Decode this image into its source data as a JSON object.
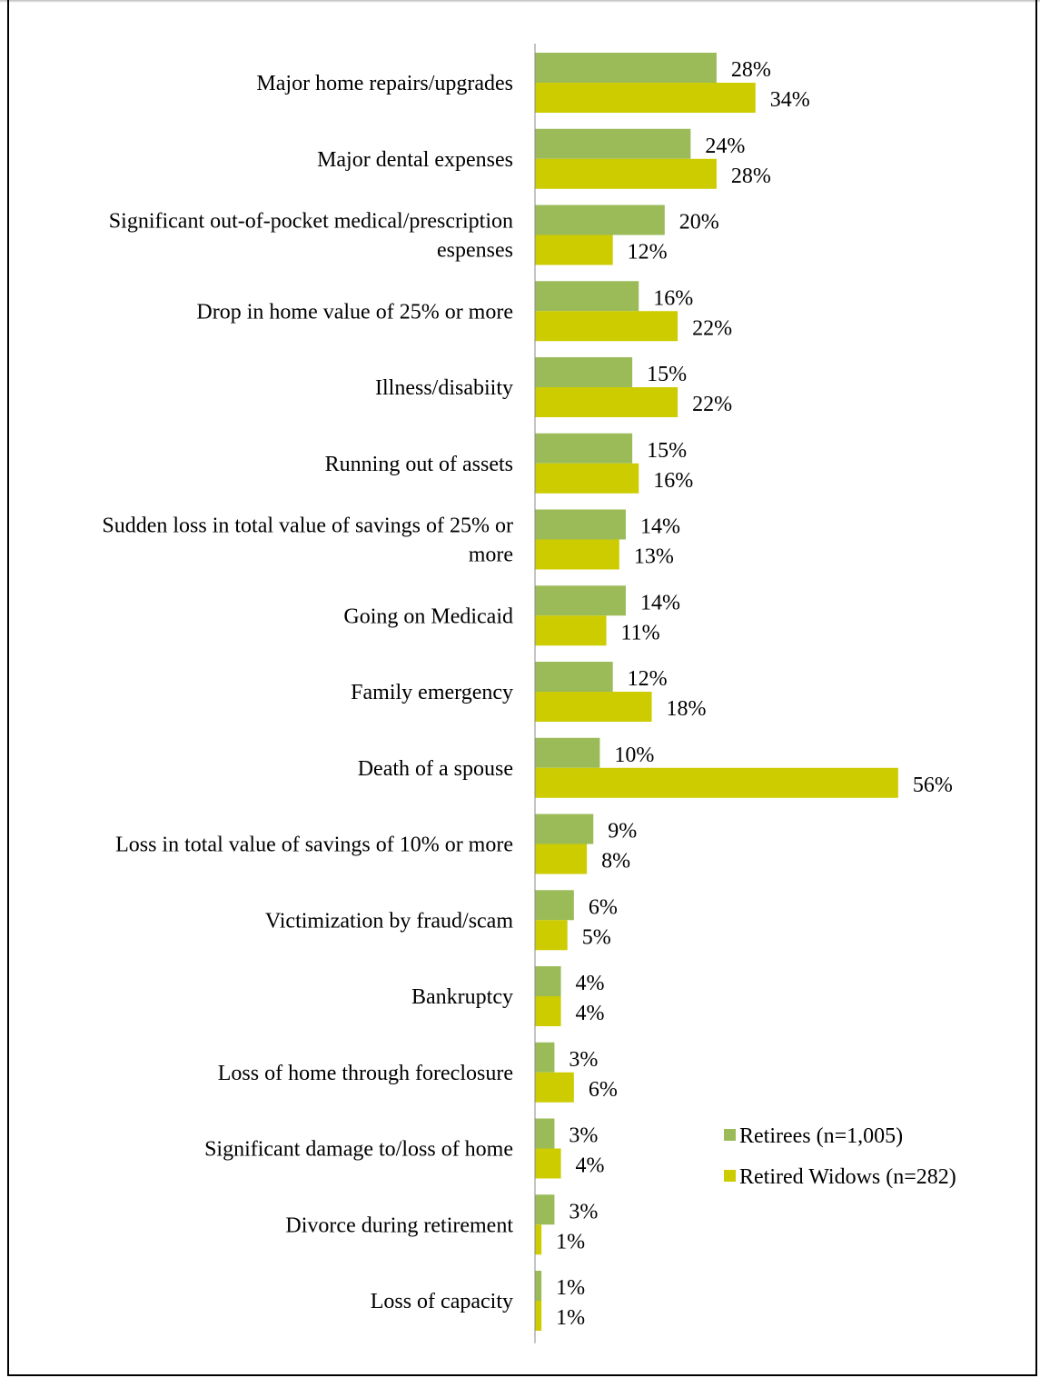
{
  "chart_data": {
    "type": "bar",
    "orientation": "horizontal",
    "title": "",
    "xlabel": "",
    "ylabel": "",
    "xlim": [
      0,
      60
    ],
    "grid": false,
    "legend_position": "bottom-right",
    "categories": [
      [
        "Major home repairs/upgrades"
      ],
      [
        "Major dental expenses"
      ],
      [
        "Significant out-of-pocket medical/prescription",
        "espenses"
      ],
      [
        "Drop in home value of 25% or more"
      ],
      [
        "Illness/disabiity"
      ],
      [
        "Running out of assets"
      ],
      [
        "Sudden loss in total value of savings of 25% or",
        "more"
      ],
      [
        "Going on Medicaid"
      ],
      [
        "Family emergency"
      ],
      [
        "Death of a spouse"
      ],
      [
        "Loss in total value of savings of 10% or more"
      ],
      [
        "Victimization by fraud/scam"
      ],
      [
        "Bankruptcy"
      ],
      [
        "Loss of home through foreclosure"
      ],
      [
        "Significant damage to/loss of home"
      ],
      [
        "Divorce during retirement"
      ],
      [
        "Loss of capacity"
      ]
    ],
    "series": [
      {
        "name": "Retirees (n=1,005)",
        "color": "#9bbb59",
        "values": [
          28,
          24,
          20,
          16,
          15,
          15,
          14,
          14,
          12,
          10,
          9,
          6,
          4,
          3,
          3,
          3,
          1
        ],
        "labels": [
          "28%",
          "24%",
          "20%",
          "16%",
          "15%",
          "15%",
          "14%",
          "14%",
          "12%",
          "10%",
          "9%",
          "6%",
          "4%",
          "3%",
          "3%",
          "3%",
          "1%"
        ]
      },
      {
        "name": "Retired Widows (n=282)",
        "color": "#cccc00",
        "values": [
          34,
          28,
          12,
          22,
          22,
          16,
          13,
          11,
          18,
          56,
          8,
          5,
          4,
          6,
          4,
          1,
          1
        ],
        "labels": [
          "34%",
          "28%",
          "12%",
          "22%",
          "22%",
          "16%",
          "13%",
          "11%",
          "18%",
          "56%",
          "8%",
          "5%",
          "4%",
          "6%",
          "4%",
          "1%",
          "1%"
        ]
      }
    ]
  }
}
